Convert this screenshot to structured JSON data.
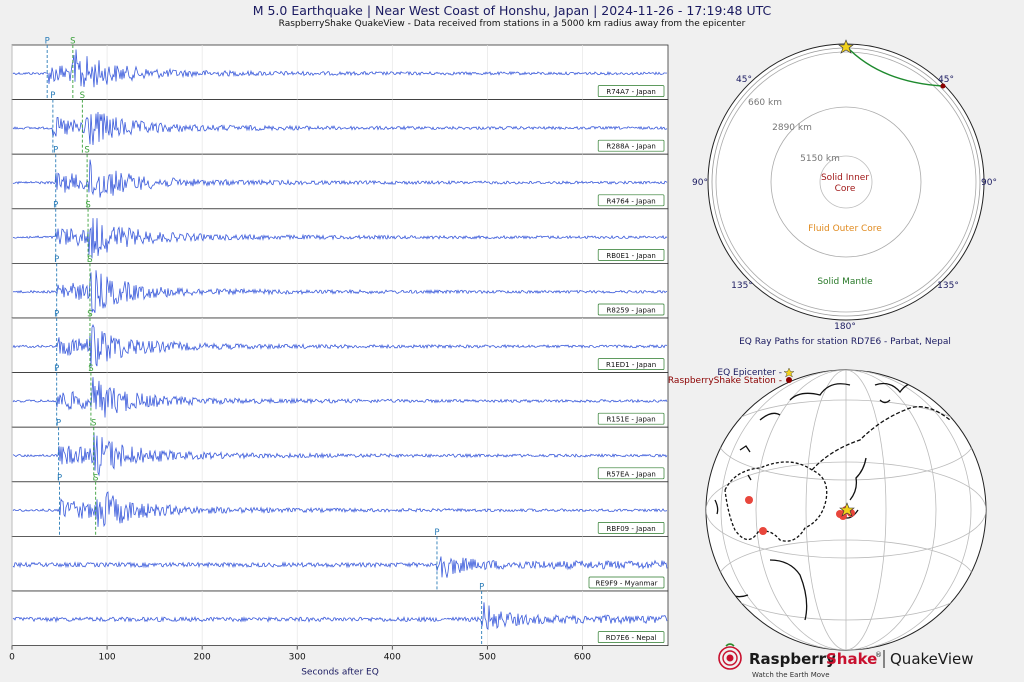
{
  "title": "M 5.0 Earthquake | Near West Coast of Honshu, Japan | 2024-11-26 - 17:19:48 UTC",
  "subtitle": "RaspberryShake QuakeView - Data received from stations in a 5000 km radius away from the epicenter",
  "chart_data": [
    {
      "type": "line",
      "xlabel": "Seconds after EQ",
      "xlim": [
        0,
        690
      ],
      "xticks": [
        0,
        100,
        200,
        300,
        400,
        500,
        600
      ],
      "trace_color": "#3b5bdb",
      "p_color": "#2a7cb8",
      "s_color": "#3aa03a",
      "stations": [
        {
          "label": "R74A7 - Japan",
          "p": 37,
          "s": 64
        },
        {
          "label": "R288A - Japan",
          "p": 43,
          "s": 74
        },
        {
          "label": "R4764 - Japan",
          "p": 46,
          "s": 79
        },
        {
          "label": "RB0E1 - Japan",
          "p": 46,
          "s": 80
        },
        {
          "label": "R8259 - Japan",
          "p": 47,
          "s": 82
        },
        {
          "label": "R1ED1 - Japan",
          "p": 47,
          "s": 82
        },
        {
          "label": "R151E - Japan",
          "p": 47,
          "s": 83
        },
        {
          "label": "R57EA - Japan",
          "p": 49,
          "s": 86
        },
        {
          "label": "RBF09 - Japan",
          "p": 50,
          "s": 88
        },
        {
          "label": "RE9F9 - Myanmar",
          "p": 447,
          "s": null
        },
        {
          "label": "RD7E6 - Nepal",
          "p": 494,
          "s": null
        }
      ],
      "p_label": "P",
      "s_label": "S"
    },
    {
      "type": "diagram",
      "caption": "EQ Ray Paths for station RD7E6 - Parbat, Nepal",
      "angle_labels": [
        "45°",
        "45°",
        "90°",
        "90°",
        "135°",
        "135°",
        "180°"
      ],
      "depth_labels": [
        "660 km",
        "2890 km",
        "5150 km"
      ],
      "layers": [
        {
          "name": "Solid Inner Core",
          "lines": [
            "Solid Inner",
            "Core"
          ],
          "color": "#a01818"
        },
        {
          "name": "Fluid Outer Core",
          "lines": [
            "Fluid Outer Core"
          ],
          "color": "#e08a1e"
        },
        {
          "name": "Solid Mantle",
          "lines": [
            "Solid Mantle"
          ],
          "color": "#2a7a2a"
        }
      ],
      "path_color": "#1e8a2e"
    },
    {
      "type": "map",
      "legend": [
        {
          "label": "EQ Epicenter -",
          "marker": "star",
          "color": "#f2d21c"
        },
        {
          "label": "RaspberryShake Station -",
          "marker": "circle",
          "color": "#8b0000"
        }
      ],
      "station_color": "#e8463c"
    }
  ],
  "brand": {
    "name_a": "Raspberry",
    "name_b": "Shake",
    "reg": "®",
    "product": "QuakeView",
    "tagline": "Watch the Earth Move",
    "color": "#c8102e"
  }
}
